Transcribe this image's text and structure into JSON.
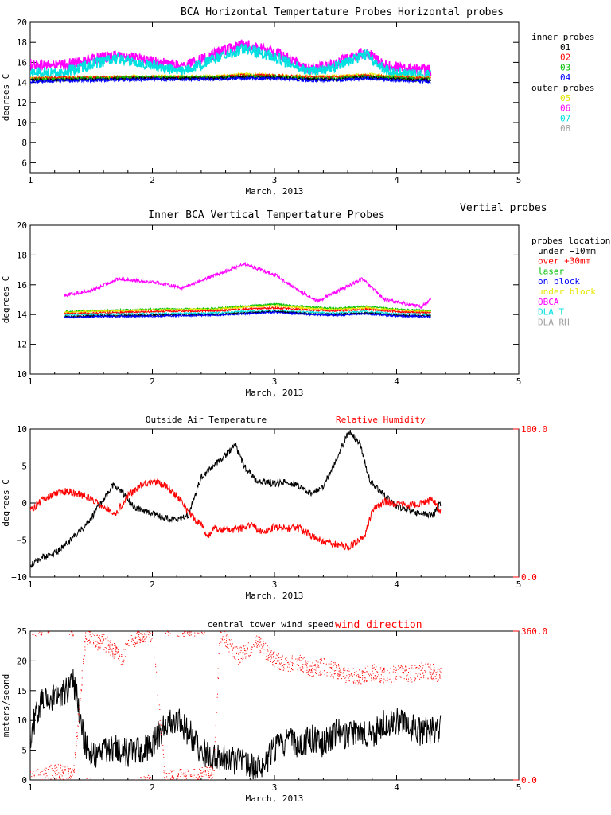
{
  "chart_data": [
    {
      "type": "line",
      "title": "BCA Horizontal Tempertature Probes",
      "side_label": "Horizontal probes",
      "ylabel": "degrees C",
      "xlabel": "March, 2013",
      "xlim": [
        1,
        5
      ],
      "ylim": [
        5,
        20
      ],
      "x_ticks": [
        "1",
        "2",
        "3",
        "4",
        "5"
      ],
      "y_ticks": [
        "6",
        "8",
        "10",
        "12",
        "14",
        "16",
        "18",
        "20"
      ],
      "legend_position": "right",
      "legend": [
        {
          "text": "inner probes",
          "color": "#000000"
        },
        {
          "text": "01",
          "color": "#000000"
        },
        {
          "text": "02",
          "color": "#ff0000"
        },
        {
          "text": "03",
          "color": "#00c000"
        },
        {
          "text": "04",
          "color": "#0000ff"
        },
        {
          "text": "outer probes",
          "color": "#000000"
        },
        {
          "text": "05",
          "color": "#e6e600"
        },
        {
          "text": "06",
          "color": "#ff00ff"
        },
        {
          "text": "07",
          "color": "#00e0e0"
        },
        {
          "text": "08",
          "color": "#a0a0a0"
        }
      ],
      "series": [
        {
          "color": "#ff00ff",
          "x": [
            1.0,
            1.25,
            1.5,
            1.72,
            2.0,
            2.25,
            2.5,
            2.75,
            3.0,
            3.3,
            3.5,
            3.75,
            3.9,
            4.1,
            4.28
          ],
          "y": [
            15.8,
            15.7,
            16.3,
            16.7,
            16.1,
            15.6,
            16.8,
            17.8,
            17.0,
            15.3,
            15.9,
            17.1,
            15.7,
            15.4,
            15.2
          ]
        },
        {
          "color": "#00e0e0",
          "x": [
            1.0,
            1.25,
            1.5,
            1.72,
            2.0,
            2.25,
            2.5,
            2.75,
            3.0,
            3.3,
            3.5,
            3.75,
            3.9,
            4.1,
            4.28
          ],
          "y": [
            15.0,
            14.9,
            15.8,
            16.4,
            15.7,
            15.1,
            16.3,
            17.4,
            16.6,
            15.0,
            15.6,
            16.8,
            15.2,
            14.8,
            14.7
          ]
        },
        {
          "color": "#e6e600",
          "x": [
            1.0,
            1.5,
            2.0,
            2.5,
            2.75,
            3.0,
            3.3,
            3.5,
            3.75,
            4.0,
            4.28
          ],
          "y": [
            14.4,
            14.5,
            14.6,
            14.6,
            14.8,
            14.7,
            14.6,
            14.6,
            14.8,
            14.6,
            14.5
          ]
        },
        {
          "color": "#ff0000",
          "x": [
            1.0,
            1.5,
            2.0,
            2.5,
            2.75,
            3.0,
            3.3,
            3.5,
            3.75,
            4.0,
            4.28
          ],
          "y": [
            14.4,
            14.5,
            14.5,
            14.5,
            14.7,
            14.7,
            14.5,
            14.5,
            14.7,
            14.5,
            14.4
          ]
        },
        {
          "color": "#00c000",
          "x": [
            1.0,
            1.5,
            2.0,
            2.5,
            2.75,
            3.0,
            3.3,
            3.5,
            3.75,
            4.0,
            4.28
          ],
          "y": [
            14.3,
            14.4,
            14.5,
            14.5,
            14.6,
            14.6,
            14.4,
            14.4,
            14.6,
            14.4,
            14.3
          ]
        },
        {
          "color": "#000000",
          "x": [
            1.0,
            1.5,
            2.0,
            2.5,
            2.75,
            3.0,
            3.3,
            3.5,
            3.75,
            4.0,
            4.28
          ],
          "y": [
            14.2,
            14.3,
            14.4,
            14.4,
            14.5,
            14.5,
            14.3,
            14.3,
            14.5,
            14.3,
            14.2
          ]
        },
        {
          "color": "#0000ff",
          "x": [
            1.0,
            1.5,
            2.0,
            2.5,
            2.75,
            3.0,
            3.3,
            3.5,
            3.75,
            4.0,
            4.28
          ],
          "y": [
            14.1,
            14.2,
            14.3,
            14.3,
            14.4,
            14.4,
            14.2,
            14.2,
            14.4,
            14.2,
            14.1
          ]
        }
      ]
    },
    {
      "type": "line",
      "title": "Inner BCA Vertical Tempertature Probes",
      "side_label": "Vertial probes",
      "ylabel": "degrees C",
      "xlabel": "March, 2013",
      "xlim": [
        1,
        5
      ],
      "ylim": [
        10,
        20
      ],
      "x_ticks": [
        "1",
        "2",
        "3",
        "4",
        "5"
      ],
      "y_ticks": [
        "10",
        "12",
        "14",
        "16",
        "18",
        "20"
      ],
      "legend_position": "right",
      "legend": [
        {
          "text": "probes locations",
          "color": "#000000"
        },
        {
          "text": "under −10mm",
          "color": "#000000"
        },
        {
          "text": "over   +30mm",
          "color": "#ff0000"
        },
        {
          "text": "laser",
          "color": "#00c000"
        },
        {
          "text": "on block",
          "color": "#0000ff"
        },
        {
          "text": "under block",
          "color": "#e6e600"
        },
        {
          "text": "OBCA",
          "color": "#ff00ff"
        },
        {
          "text": "DLA T",
          "color": "#00e0e0"
        },
        {
          "text": "DLA RH",
          "color": "#a0a0a0"
        }
      ],
      "series": [
        {
          "color": "#ff00ff",
          "x": [
            1.28,
            1.5,
            1.72,
            2.0,
            2.25,
            2.5,
            2.75,
            3.0,
            3.2,
            3.35,
            3.5,
            3.72,
            3.9,
            4.1,
            4.2,
            4.25,
            4.28
          ],
          "y": [
            15.3,
            15.6,
            16.4,
            16.2,
            15.8,
            16.6,
            17.4,
            16.7,
            15.6,
            14.9,
            15.5,
            16.4,
            15.0,
            14.7,
            14.5,
            14.8,
            15.1
          ]
        },
        {
          "color": "#00c000",
          "x": [
            1.28,
            1.5,
            2.0,
            2.5,
            2.75,
            3.0,
            3.3,
            3.5,
            3.75,
            4.0,
            4.28
          ],
          "y": [
            14.2,
            14.25,
            14.35,
            14.4,
            14.55,
            14.7,
            14.5,
            14.4,
            14.55,
            14.35,
            14.25
          ]
        },
        {
          "color": "#e6e600",
          "x": [
            1.28,
            1.5,
            2.0,
            2.5,
            2.75,
            3.0,
            3.3,
            3.5,
            3.75,
            4.0,
            4.28
          ],
          "y": [
            14.15,
            14.2,
            14.3,
            14.35,
            14.5,
            14.6,
            14.4,
            14.35,
            14.45,
            14.3,
            14.2
          ]
        },
        {
          "color": "#ff0000",
          "x": [
            1.28,
            1.5,
            2.0,
            2.5,
            2.75,
            3.0,
            3.3,
            3.5,
            3.75,
            4.0,
            4.28
          ],
          "y": [
            14.05,
            14.1,
            14.2,
            14.25,
            14.35,
            14.45,
            14.3,
            14.25,
            14.35,
            14.2,
            14.1
          ]
        },
        {
          "color": "#00e0e0",
          "x": [
            1.28,
            1.5,
            2.0,
            2.5,
            2.75,
            3.0,
            3.3,
            3.5,
            3.75,
            4.0,
            4.28
          ],
          "y": [
            13.95,
            14.0,
            14.05,
            14.1,
            14.2,
            14.25,
            14.15,
            14.1,
            14.2,
            14.05,
            14.0
          ]
        },
        {
          "color": "#000000",
          "x": [
            1.28,
            1.5,
            2.0,
            2.5,
            2.75,
            3.0,
            3.3,
            3.5,
            3.75,
            4.0,
            4.28
          ],
          "y": [
            13.85,
            13.9,
            13.95,
            14.0,
            14.1,
            14.2,
            14.05,
            14.0,
            14.1,
            13.95,
            13.9
          ]
        },
        {
          "color": "#0000ff",
          "x": [
            1.28,
            1.5,
            2.0,
            2.5,
            2.75,
            3.0,
            3.3,
            3.5,
            3.75,
            4.0,
            4.28
          ],
          "y": [
            13.8,
            13.85,
            13.9,
            13.95,
            14.05,
            14.15,
            14.0,
            13.95,
            14.05,
            13.9,
            13.85
          ]
        }
      ]
    },
    {
      "type": "line",
      "title": "Outside Air Temperature",
      "title2": "Relative Humidity",
      "ylabel": "degrees C",
      "xlabel": "March, 2013",
      "xlim": [
        1,
        5
      ],
      "ylim": [
        -10,
        10
      ],
      "y2lim": [
        0,
        100
      ],
      "x_ticks": [
        "1",
        "2",
        "3",
        "4",
        "5"
      ],
      "y_ticks": [
        "−10",
        "−5",
        "0",
        "5",
        "10"
      ],
      "y2_ticks": [
        "0.0",
        "100.0"
      ],
      "series": [
        {
          "color": "#000000",
          "axis": "left",
          "x": [
            1.0,
            1.1,
            1.2,
            1.3,
            1.4,
            1.5,
            1.6,
            1.68,
            1.75,
            1.85,
            2.0,
            2.1,
            2.2,
            2.3,
            2.4,
            2.5,
            2.6,
            2.68,
            2.75,
            2.85,
            3.0,
            3.1,
            3.2,
            3.3,
            3.4,
            3.5,
            3.58,
            3.62,
            3.7,
            3.78,
            3.9,
            4.0,
            4.1,
            4.2,
            4.3,
            4.36
          ],
          "y": [
            -8.5,
            -7.3,
            -6.8,
            -5.5,
            -4.0,
            -2.0,
            0.5,
            2.5,
            1.5,
            -0.5,
            -1.5,
            -2.0,
            -2.4,
            -1.5,
            3.5,
            5.0,
            6.5,
            7.8,
            5.0,
            3.0,
            2.6,
            2.9,
            2.3,
            1.3,
            2.3,
            5.5,
            8.8,
            9.5,
            8.0,
            3.0,
            1.0,
            -0.5,
            -1.0,
            -1.4,
            -1.6,
            0.0
          ]
        },
        {
          "color": "#ff0000",
          "axis": "right",
          "x": [
            1.0,
            1.1,
            1.2,
            1.3,
            1.4,
            1.5,
            1.6,
            1.7,
            1.8,
            1.9,
            2.0,
            2.1,
            2.2,
            2.3,
            2.4,
            2.45,
            2.5,
            2.6,
            2.7,
            2.8,
            2.9,
            3.0,
            3.1,
            3.2,
            3.3,
            3.4,
            3.5,
            3.6,
            3.7,
            3.75,
            3.8,
            3.9,
            4.0,
            4.1,
            4.2,
            4.3,
            4.36
          ],
          "y": [
            45,
            52,
            56,
            58,
            56,
            53,
            48,
            43,
            55,
            62,
            65,
            62,
            55,
            43,
            35,
            27,
            33,
            32,
            32,
            35,
            30,
            34,
            33,
            33,
            28,
            24,
            22,
            20,
            25,
            30,
            45,
            51,
            49,
            48,
            50,
            52,
            44
          ]
        }
      ]
    },
    {
      "type": "scatter",
      "title": "central tower wind speed",
      "title2": "wind direction",
      "ylabel": "meters/seond",
      "xlabel": "March, 2013",
      "xlim": [
        1,
        5
      ],
      "ylim": [
        0,
        25
      ],
      "y2lim": [
        0,
        360
      ],
      "x_ticks": [
        "1",
        "2",
        "3",
        "4",
        "5"
      ],
      "y_ticks": [
        "0",
        "5",
        "10",
        "15",
        "20",
        "25"
      ],
      "y2_ticks": [
        "0.0",
        "360.0"
      ],
      "series": [
        {
          "color": "#000000",
          "axis": "left",
          "kind": "line",
          "x": [
            1.0,
            1.05,
            1.1,
            1.2,
            1.3,
            1.35,
            1.4,
            1.45,
            1.5,
            1.6,
            1.7,
            1.8,
            1.9,
            2.0,
            2.1,
            2.2,
            2.3,
            2.4,
            2.5,
            2.6,
            2.7,
            2.8,
            2.9,
            3.0,
            3.1,
            3.2,
            3.3,
            3.4,
            3.5,
            3.6,
            3.7,
            3.8,
            3.9,
            4.0,
            4.1,
            4.2,
            4.3,
            4.36
          ],
          "y": [
            7.0,
            11.5,
            13.5,
            14.0,
            15.0,
            17.0,
            12.0,
            6.0,
            4.0,
            5.0,
            5.5,
            4.5,
            5.0,
            6.0,
            9.0,
            10.0,
            8.0,
            5.0,
            3.5,
            4.0,
            3.0,
            2.5,
            2.0,
            5.0,
            6.5,
            6.0,
            7.0,
            6.0,
            8.0,
            7.5,
            8.0,
            7.5,
            9.5,
            10.0,
            9.0,
            8.0,
            8.5,
            8.5
          ]
        },
        {
          "color": "#ff0000",
          "axis": "right",
          "kind": "dots",
          "x": [
            1.0,
            1.1,
            1.2,
            1.3,
            1.35,
            1.45,
            1.5,
            1.55,
            1.6,
            1.7,
            1.75,
            1.8,
            1.9,
            2.0,
            2.1,
            2.2,
            2.3,
            2.4,
            2.5,
            2.55,
            2.6,
            2.7,
            2.8,
            2.85,
            2.9,
            3.0,
            3.1,
            3.2,
            3.3,
            3.4,
            3.5,
            3.6,
            3.7,
            3.8,
            3.9,
            4.0,
            4.1,
            4.2,
            4.3,
            4.36
          ],
          "y": [
            5,
            12,
            20,
            15,
            8,
            345,
            350,
            330,
            335,
            310,
            290,
            330,
            350,
            355,
            10,
            8,
            6,
            12,
            18,
            350,
            340,
            300,
            320,
            340,
            320,
            290,
            280,
            285,
            270,
            275,
            265,
            255,
            250,
            262,
            252,
            260,
            255,
            265,
            262,
            255
          ]
        }
      ]
    }
  ]
}
